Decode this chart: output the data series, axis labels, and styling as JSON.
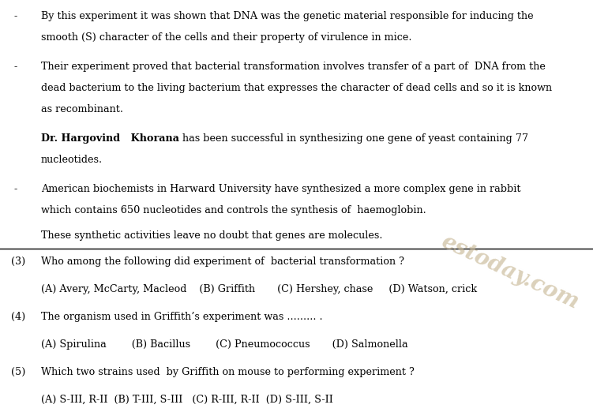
{
  "background_color": "#ffffff",
  "text_color": "#000000",
  "watermark_color": "#c8b896",
  "figsize": [
    7.51,
    5.22
  ],
  "dpi": 100,
  "bullet1_line1": "By this experiment it was shown that DNA was the genetic material responsible for inducing the",
  "bullet1_line2": "smooth (S) character of the cells and their property of virulence in mice.",
  "bullet2_line1": "Their experiment proved that bacterial transformation involves transfer of a part of  DNA from the",
  "bullet2_line2": "dead bacterium to the living bacterium that expresses the character of dead cells and so it is known",
  "bullet2_line3": "as recombinant.",
  "hargovind_bold": "Dr. Hargovind   Khorana",
  "hargovind_normal": " has been successful in synthesizing one gene of yeast containing 77",
  "hargovind_line2": "nucleotides.",
  "bullet3_line1": "American biochemists in Harward University have synthesized a more complex gene in rabbit",
  "bullet3_line2": "which contains 650 nucleotides and controls the synthesis of  haemoglobin.",
  "standalone": "These synthetic activities leave no doubt that genes are molecules.",
  "q3_text": "Who among the following did experiment of  bacterial transformation ?",
  "q3_opts": "(A) Avery, McCarty, Macleod    (B) Griffith       (C) Hershey, chase     (D) Watson, crick",
  "q4_text": "The organism used in Griffith’s experiment was ......... .",
  "q4_opts": "(A) Spirulina        (B) Bacillus        (C) Pneumococcus       (D) Salmonella",
  "q5_text": "Which two strains used  by Griffith on mouse to performing experiment ?",
  "q5_opts": "(A) S-III, R-II  (B) T-III, S-III   (C) R-III, R-II  (D) S-III, S-II",
  "watermark": "estoday.com",
  "font_size": 9.2
}
